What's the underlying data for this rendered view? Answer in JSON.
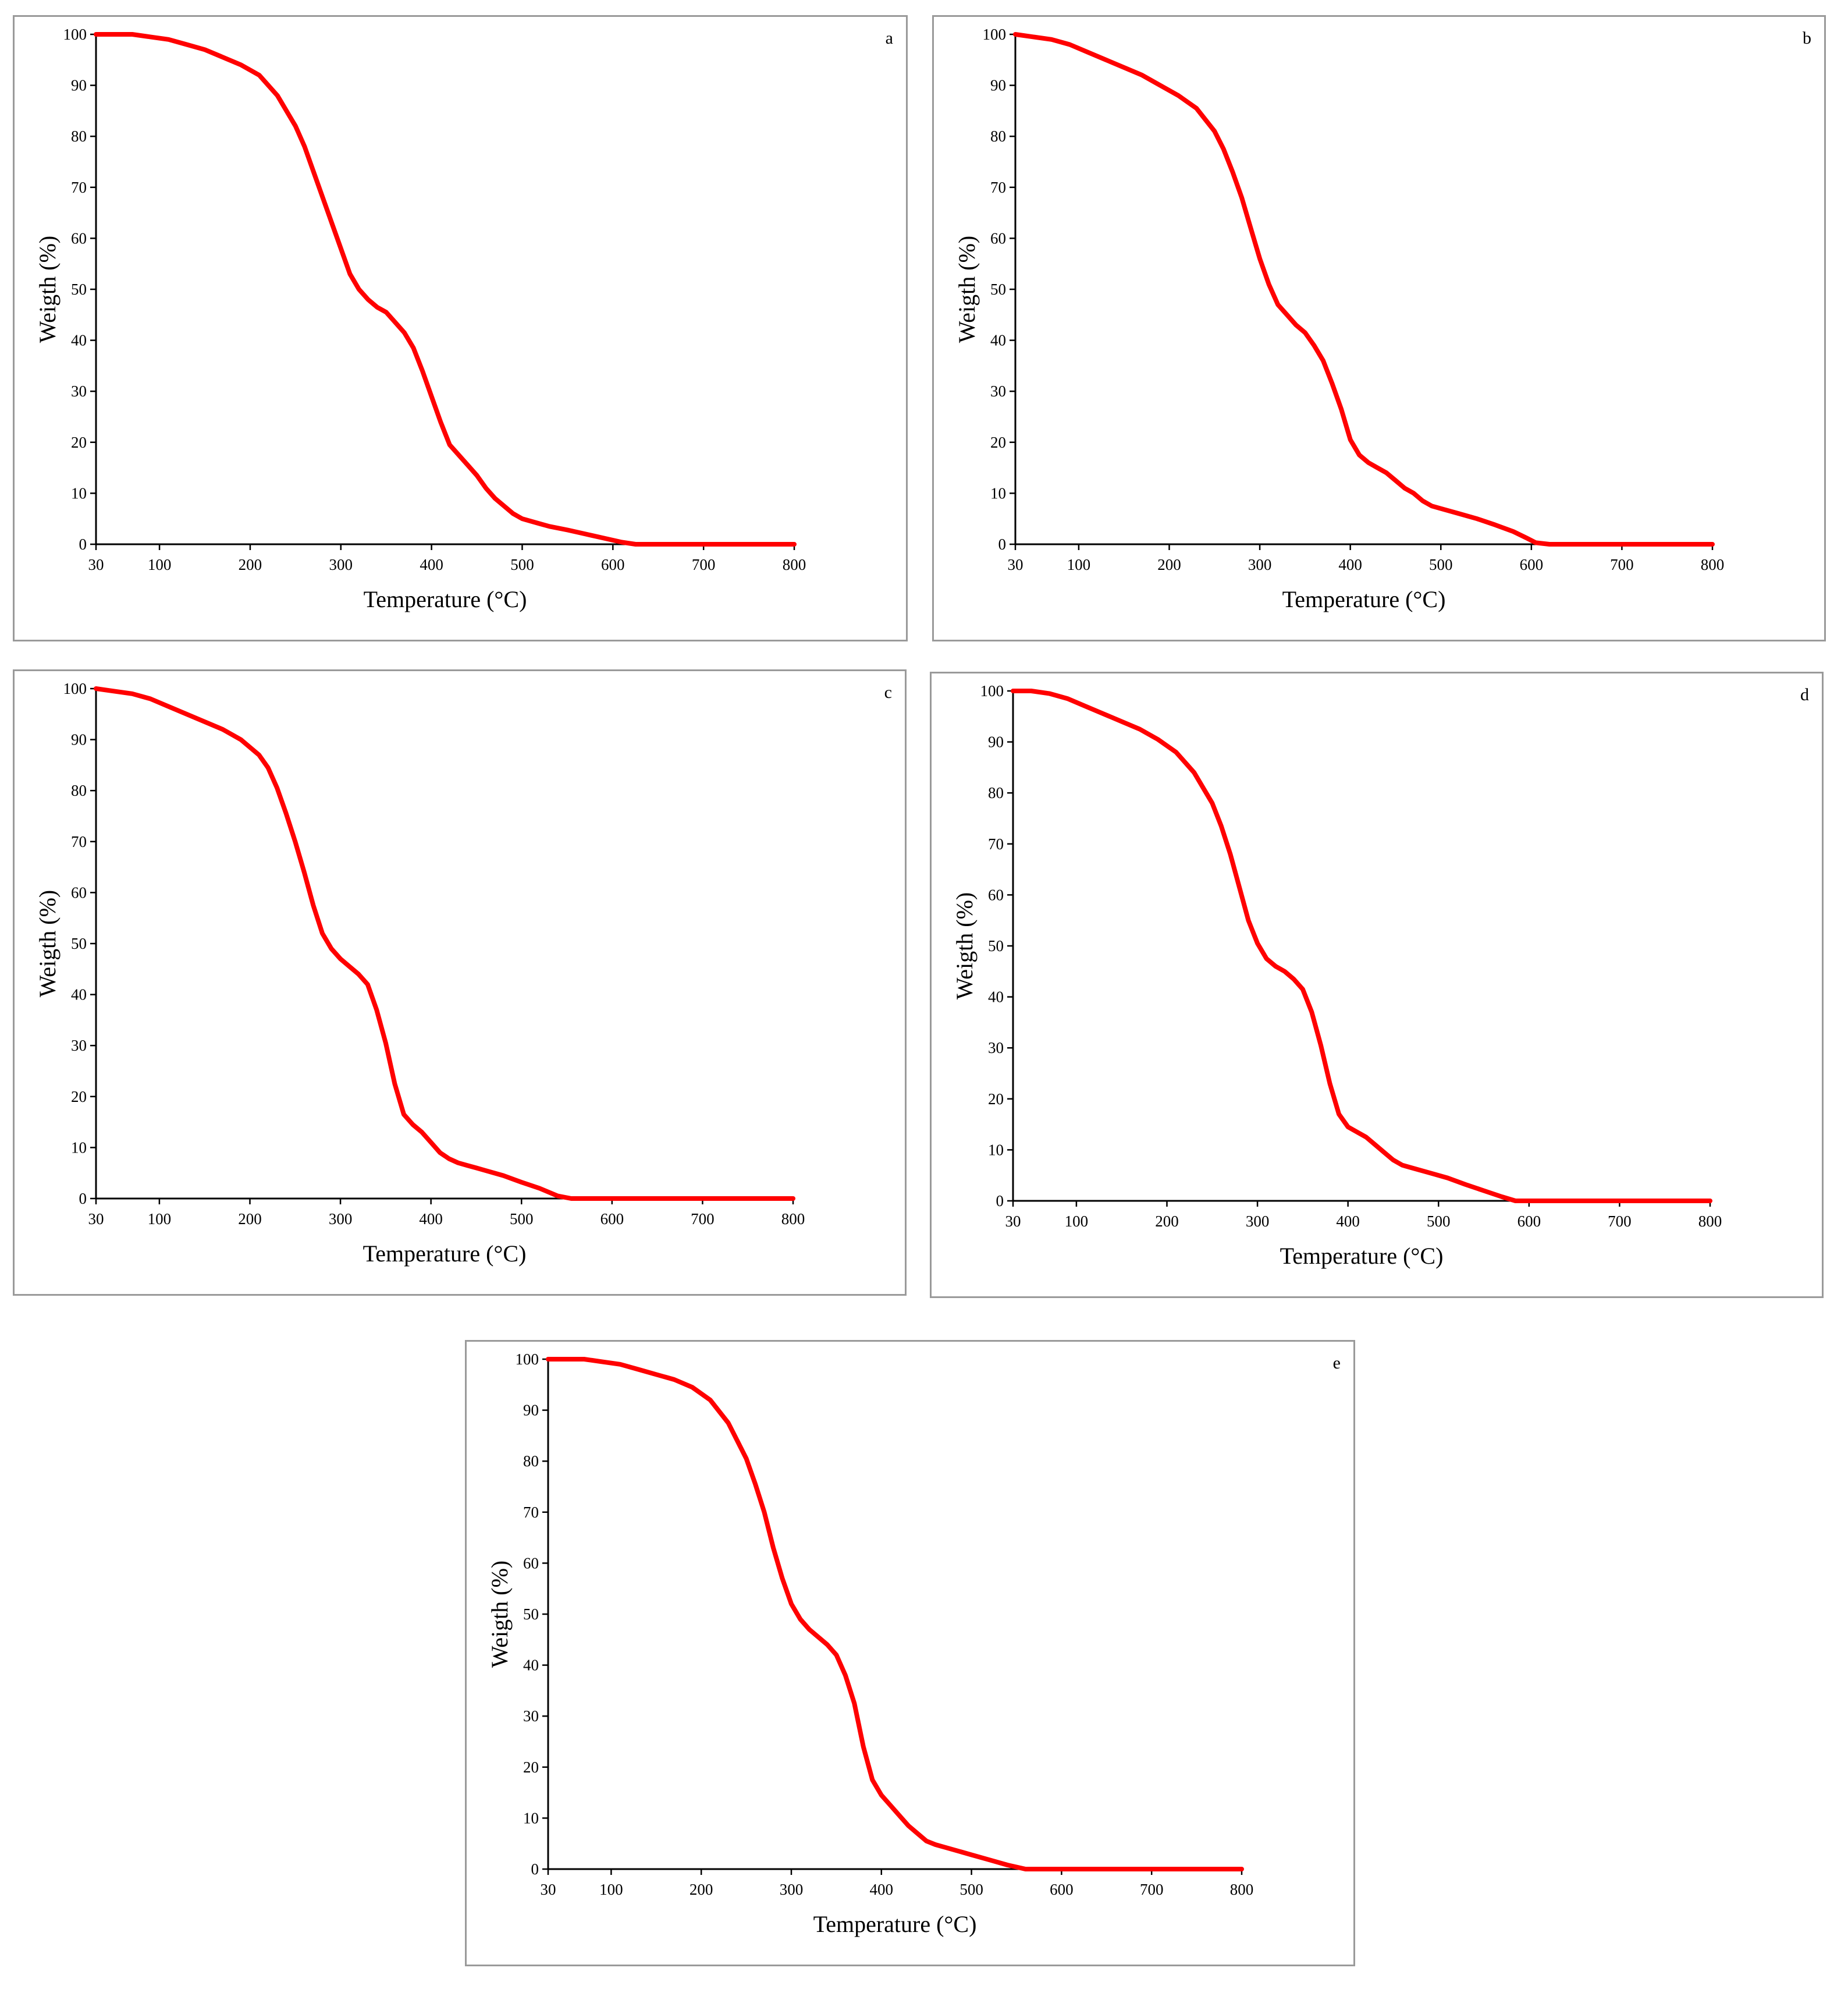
{
  "chart_data": [
    {
      "type": "line",
      "panel_label": "a",
      "xlabel": "Temperature (°C)",
      "ylabel": "Weigth (%)",
      "xlim": [
        30,
        800
      ],
      "ylim": [
        0,
        100
      ],
      "x_ticks": [
        30,
        100,
        200,
        300,
        400,
        500,
        600,
        700,
        800
      ],
      "y_ticks": [
        0,
        10,
        20,
        30,
        40,
        50,
        60,
        70,
        80,
        90,
        100
      ],
      "grid": false,
      "legend": "none",
      "color": "#ff0000",
      "series": [
        {
          "x": [
            30,
            50,
            70,
            90,
            110,
            130,
            150,
            170,
            190,
            210,
            230,
            250,
            260,
            270,
            280,
            290,
            300,
            310,
            320,
            330,
            340,
            350,
            360,
            370,
            380,
            390,
            400,
            410,
            420,
            430,
            440,
            450,
            460,
            470,
            480,
            490,
            500,
            510,
            520,
            530,
            550,
            570,
            590,
            610,
            625,
            700,
            800
          ],
          "y": [
            100,
            100,
            100,
            99.5,
            99,
            98,
            97,
            95.5,
            94,
            92,
            88,
            82,
            78,
            73,
            68,
            63,
            58,
            53,
            50,
            48,
            46.5,
            45.5,
            43.5,
            41.5,
            38.5,
            34,
            29,
            24,
            19.5,
            17.5,
            15.5,
            13.5,
            11,
            9,
            7.5,
            6,
            5,
            4.5,
            4,
            3.5,
            2.8,
            2,
            1.2,
            0.4,
            0,
            0,
            0
          ]
        }
      ]
    },
    {
      "type": "line",
      "panel_label": "b",
      "xlabel": "Temperature (°C)",
      "ylabel": "Weigth (%)",
      "xlim": [
        30,
        800
      ],
      "ylim": [
        0,
        100
      ],
      "x_ticks": [
        30,
        100,
        200,
        300,
        400,
        500,
        600,
        700,
        800
      ],
      "y_ticks": [
        0,
        10,
        20,
        30,
        40,
        50,
        60,
        70,
        80,
        90,
        100
      ],
      "grid": false,
      "legend": "none",
      "color": "#ff0000",
      "series": [
        {
          "x": [
            30,
            50,
            70,
            90,
            110,
            130,
            150,
            170,
            190,
            210,
            230,
            250,
            260,
            270,
            280,
            290,
            300,
            310,
            320,
            330,
            340,
            350,
            360,
            370,
            380,
            390,
            400,
            410,
            420,
            430,
            440,
            450,
            460,
            470,
            480,
            490,
            500,
            520,
            540,
            560,
            580,
            595,
            605,
            620,
            700,
            800
          ],
          "y": [
            100,
            99.5,
            99,
            98,
            96.5,
            95,
            93.5,
            92,
            90,
            88,
            85.5,
            81,
            77.5,
            73,
            68,
            62,
            56,
            51,
            47,
            45,
            43,
            41.5,
            39,
            36,
            31.5,
            26.5,
            20.5,
            17.5,
            16,
            15,
            14,
            12.5,
            11,
            10,
            8.5,
            7.5,
            7,
            6,
            5,
            3.8,
            2.5,
            1.2,
            0.3,
            0,
            0,
            0
          ]
        }
      ]
    },
    {
      "type": "line",
      "panel_label": "c",
      "xlabel": "Temperature (°C)",
      "ylabel": "Weigth (%)",
      "xlim": [
        30,
        800
      ],
      "ylim": [
        0,
        100
      ],
      "x_ticks": [
        30,
        100,
        200,
        300,
        400,
        500,
        600,
        700,
        800
      ],
      "y_ticks": [
        0,
        10,
        20,
        30,
        40,
        50,
        60,
        70,
        80,
        90,
        100
      ],
      "grid": false,
      "legend": "none",
      "color": "#ff0000",
      "series": [
        {
          "x": [
            30,
            50,
            70,
            90,
            110,
            130,
            150,
            170,
            190,
            210,
            220,
            230,
            240,
            250,
            260,
            270,
            280,
            290,
            300,
            310,
            320,
            330,
            340,
            350,
            360,
            370,
            380,
            390,
            400,
            410,
            420,
            430,
            440,
            450,
            460,
            480,
            500,
            520,
            540,
            555,
            565,
            600,
            700,
            800
          ],
          "y": [
            100,
            99.5,
            99,
            98,
            96.5,
            95,
            93.5,
            92,
            90,
            87,
            84.5,
            80.5,
            75.5,
            70,
            64,
            57.5,
            52,
            49,
            47,
            45.5,
            44,
            42,
            37,
            30.5,
            22.5,
            16.5,
            14.5,
            13,
            11,
            9,
            7.8,
            7,
            6.5,
            6,
            5.5,
            4.5,
            3.2,
            2,
            0.5,
            0,
            0,
            0,
            0,
            0
          ]
        }
      ]
    },
    {
      "type": "line",
      "panel_label": "d",
      "xlabel": "Temperature (°C)",
      "ylabel": "Weigth (%)",
      "xlim": [
        30,
        800
      ],
      "ylim": [
        0,
        100
      ],
      "x_ticks": [
        30,
        100,
        200,
        300,
        400,
        500,
        600,
        700,
        800
      ],
      "y_ticks": [
        0,
        10,
        20,
        30,
        40,
        50,
        60,
        70,
        80,
        90,
        100
      ],
      "grid": false,
      "legend": "none",
      "color": "#ff0000",
      "series": [
        {
          "x": [
            30,
            50,
            70,
            90,
            110,
            130,
            150,
            170,
            190,
            210,
            230,
            250,
            260,
            270,
            280,
            290,
            300,
            310,
            320,
            330,
            340,
            350,
            360,
            370,
            380,
            390,
            400,
            410,
            420,
            430,
            440,
            450,
            460,
            470,
            490,
            510,
            530,
            550,
            570,
            585,
            600,
            700,
            800
          ],
          "y": [
            100,
            100,
            99.5,
            98.5,
            97,
            95.5,
            94,
            92.5,
            90.5,
            88,
            84,
            78,
            73.5,
            68,
            61.5,
            55,
            50.5,
            47.5,
            46,
            45,
            43.5,
            41.5,
            37,
            30.5,
            23,
            17,
            14.5,
            13.5,
            12.5,
            11,
            9.5,
            8,
            7,
            6.5,
            5.5,
            4.5,
            3.2,
            2,
            0.8,
            0,
            0,
            0,
            0
          ]
        }
      ]
    },
    {
      "type": "line",
      "panel_label": "e",
      "xlabel": "Temperature (°C)",
      "ylabel": "Weigth (%)",
      "xlim": [
        30,
        800
      ],
      "ylim": [
        0,
        100
      ],
      "x_ticks": [
        30,
        100,
        200,
        300,
        400,
        500,
        600,
        700,
        800
      ],
      "y_ticks": [
        0,
        10,
        20,
        30,
        40,
        50,
        60,
        70,
        80,
        90,
        100
      ],
      "grid": false,
      "legend": "none",
      "color": "#ff0000",
      "series": [
        {
          "x": [
            30,
            50,
            70,
            90,
            110,
            130,
            150,
            170,
            190,
            210,
            230,
            250,
            260,
            270,
            280,
            290,
            300,
            310,
            320,
            330,
            340,
            350,
            360,
            370,
            380,
            390,
            400,
            410,
            420,
            430,
            440,
            450,
            460,
            470,
            480,
            500,
            520,
            540,
            560,
            580,
            600,
            700,
            800
          ],
          "y": [
            100,
            100,
            100,
            99.5,
            99,
            98,
            97,
            96,
            94.5,
            92,
            87.5,
            80.5,
            75.5,
            70,
            63,
            57,
            52,
            49,
            47,
            45.5,
            44,
            42,
            38,
            32.5,
            24,
            17.5,
            14.5,
            12.5,
            10.5,
            8.5,
            7,
            5.5,
            4.8,
            4.3,
            3.8,
            2.8,
            1.8,
            0.8,
            0,
            0,
            0,
            0,
            0
          ]
        }
      ]
    }
  ]
}
